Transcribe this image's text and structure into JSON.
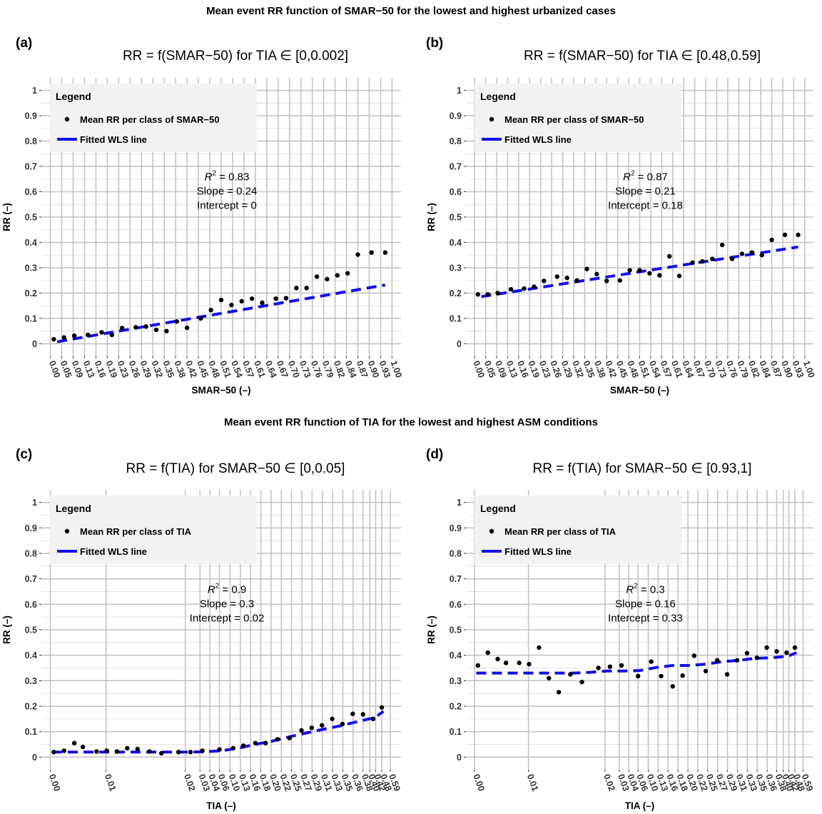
{
  "titles": {
    "top": "Mean event RR function of SMAR−50 for the lowest and highest urbanized cases",
    "bottom": "Mean event RR function of TIA for the lowest and highest ASM conditions"
  },
  "chart_data": [
    {
      "type": "scatter",
      "tag": "(a)",
      "title_main": "RR = f(SMAR−50) for TIA ∈ ",
      "title_interval": "0,0.002",
      "xlabel": "SMAR−50 (–)",
      "ylabel": "RR (–)",
      "ylim": [
        0,
        1
      ],
      "y_ticks": [
        "0",
        "0.1",
        "0.2",
        "0.3",
        "0.4",
        "0.5",
        "0.6",
        "0.7",
        "0.8",
        "0.9",
        "1"
      ],
      "x_ticks": [
        "0.00",
        "0.05",
        "0.09",
        "0.13",
        "0.16",
        "0.19",
        "0.23",
        "0.26",
        "0.29",
        "0.32",
        "0.35",
        "0.38",
        "0.42",
        "0.45",
        "0.48",
        "0.51",
        "0.54",
        "0.57",
        "0.61",
        "0.64",
        "0.67",
        "0.70",
        "0.73",
        "0.76",
        "0.79",
        "0.82",
        "0.84",
        "0.87",
        "0.90",
        "0.93",
        "1.00"
      ],
      "legend": {
        "title": "Legend",
        "points_label": "Mean RR per class of SMAR−50",
        "line_label": "Fitted WLS line"
      },
      "annotation": {
        "r2_label": "R",
        "r2_sup": "2",
        "r2_value": " = 0.83",
        "slope": "Slope = 0.24",
        "intercept": "Intercept = 0"
      },
      "points": {
        "x": [
          0.01,
          0.04,
          0.07,
          0.11,
          0.15,
          0.18,
          0.21,
          0.25,
          0.28,
          0.31,
          0.34,
          0.37,
          0.4,
          0.44,
          0.47,
          0.5,
          0.53,
          0.56,
          0.59,
          0.62,
          0.66,
          0.69,
          0.72,
          0.75,
          0.78,
          0.81,
          0.84,
          0.87,
          0.9,
          0.94,
          0.98
        ],
        "y": [
          0.018,
          0.025,
          0.032,
          0.035,
          0.045,
          0.035,
          0.062,
          0.065,
          0.068,
          0.055,
          0.05,
          0.088,
          0.063,
          0.1,
          0.133,
          0.173,
          0.153,
          0.168,
          0.178,
          0.162,
          0.178,
          0.18,
          0.22,
          0.22,
          0.265,
          0.255,
          0.27,
          0.278,
          0.352,
          0.36,
          0.36
        ]
      },
      "fit_line": {
        "x": [
          0.02,
          0.98
        ],
        "y": [
          0.008,
          0.232
        ]
      }
    },
    {
      "type": "scatter",
      "tag": "(b)",
      "title_main": "RR = f(SMAR−50) for TIA ∈ ",
      "title_interval": "0.48,0.59",
      "xlabel": "SMAR−50 (–)",
      "ylabel": "RR (–)",
      "ylim": [
        0,
        1
      ],
      "y_ticks": [
        "0",
        "0.1",
        "0.2",
        "0.3",
        "0.4",
        "0.5",
        "0.6",
        "0.7",
        "0.8",
        "0.9",
        "1"
      ],
      "x_ticks": [
        "0.00",
        "0.05",
        "0.09",
        "0.13",
        "0.16",
        "0.19",
        "0.23",
        "0.26",
        "0.29",
        "0.32",
        "0.35",
        "0.38",
        "0.42",
        "0.45",
        "0.48",
        "0.51",
        "0.54",
        "0.57",
        "0.61",
        "0.64",
        "0.67",
        "0.70",
        "0.73",
        "0.76",
        "0.79",
        "0.82",
        "0.84",
        "0.87",
        "0.90",
        "0.93",
        "1.00"
      ],
      "legend": {
        "title": "Legend",
        "points_label": "Mean RR per class of SMAR−50",
        "line_label": "Fitted WLS line"
      },
      "annotation": {
        "r2_label": "R",
        "r2_sup": "2",
        "r2_value": " = 0.87",
        "slope": "Slope = 0.21",
        "intercept": "Intercept = 0.18"
      },
      "points": {
        "x": [
          0.01,
          0.04,
          0.07,
          0.11,
          0.15,
          0.18,
          0.21,
          0.25,
          0.28,
          0.31,
          0.34,
          0.37,
          0.4,
          0.44,
          0.47,
          0.5,
          0.53,
          0.56,
          0.59,
          0.62,
          0.66,
          0.69,
          0.72,
          0.75,
          0.78,
          0.81,
          0.84,
          0.87,
          0.9,
          0.94,
          0.98
        ],
        "y": [
          0.195,
          0.195,
          0.2,
          0.215,
          0.218,
          0.225,
          0.248,
          0.265,
          0.26,
          0.25,
          0.295,
          0.275,
          0.248,
          0.25,
          0.29,
          0.29,
          0.278,
          0.27,
          0.345,
          0.268,
          0.32,
          0.325,
          0.335,
          0.39,
          0.335,
          0.355,
          0.36,
          0.35,
          0.41,
          0.43,
          0.43
        ]
      },
      "fit_line": {
        "x": [
          0.02,
          0.98
        ],
        "y": [
          0.186,
          0.382
        ]
      }
    },
    {
      "type": "scatter",
      "tag": "(c)",
      "title_main": "RR = f(TIA) for SMAR−50 ∈ ",
      "title_interval": "0,0.05",
      "xlabel": "TIA (–)",
      "ylabel": "RR (–)",
      "ylim": [
        0,
        1
      ],
      "y_ticks": [
        "0",
        "0.1",
        "0.2",
        "0.3",
        "0.4",
        "0.5",
        "0.6",
        "0.7",
        "0.8",
        "0.9",
        "1"
      ],
      "x_ticks": [
        "0.00",
        "0.01",
        "0.02",
        "0.03",
        "0.04",
        "0.06",
        "0.10",
        "0.13",
        "0.16",
        "0.18",
        "0.20",
        "0.22",
        "0.25",
        "0.27",
        "0.29",
        "0.31",
        "0.33",
        "0.35",
        "0.36",
        "0.38",
        "0.40",
        "0.42",
        "0.48",
        "0.59"
      ],
      "legend": {
        "title": "Legend",
        "points_label": "Mean RR per class of TIA",
        "line_label": "Fitted WLS line"
      },
      "annotation": {
        "r2_label": "R",
        "r2_sup": "2",
        "r2_value": " = 0.9",
        "slope": "Slope = 0.3",
        "intercept": "Intercept = 0.02"
      },
      "points": {
        "x": [
          0.01,
          0.04,
          0.07,
          0.095,
          0.135,
          0.165,
          0.195,
          0.225,
          0.255,
          0.29,
          0.325,
          0.375,
          0.41,
          0.445,
          0.495,
          0.535,
          0.565,
          0.6,
          0.63,
          0.665,
          0.7,
          0.735,
          0.765,
          0.795,
          0.825,
          0.855,
          0.885,
          0.915,
          0.945,
          0.97
        ],
        "y": [
          0.02,
          0.025,
          0.055,
          0.04,
          0.022,
          0.025,
          0.022,
          0.035,
          0.032,
          0.022,
          0.015,
          0.02,
          0.02,
          0.025,
          0.03,
          0.035,
          0.045,
          0.055,
          0.055,
          0.07,
          0.075,
          0.105,
          0.115,
          0.125,
          0.15,
          0.13,
          0.17,
          0.168,
          0.15,
          0.195
        ]
      },
      "fit_line": {
        "x": [
          0.005,
          0.05,
          0.1,
          0.15,
          0.2,
          0.25,
          0.3,
          0.35,
          0.4,
          0.45,
          0.5,
          0.55,
          0.6,
          0.65,
          0.7,
          0.75,
          0.8,
          0.85,
          0.9,
          0.95,
          0.975
        ],
        "y": [
          0.02,
          0.02,
          0.02,
          0.02,
          0.02,
          0.02,
          0.02,
          0.02,
          0.02,
          0.021,
          0.025,
          0.035,
          0.05,
          0.063,
          0.08,
          0.095,
          0.11,
          0.123,
          0.14,
          0.155,
          0.18
        ]
      }
    },
    {
      "type": "scatter",
      "tag": "(d)",
      "title_main": "RR = f(TIA) for SMAR−50 ∈ ",
      "title_interval": "0.93,1",
      "xlabel": "TIA (–)",
      "ylabel": "RR (–)",
      "ylim": [
        0,
        1
      ],
      "y_ticks": [
        "0",
        "0.1",
        "0.2",
        "0.3",
        "0.4",
        "0.5",
        "0.6",
        "0.7",
        "0.8",
        "0.9",
        "1"
      ],
      "x_ticks": [
        "0.00",
        "0.01",
        "0.02",
        "0.03",
        "0.04",
        "0.06",
        "0.10",
        "0.13",
        "0.16",
        "0.18",
        "0.20",
        "0.22",
        "0.25",
        "0.27",
        "0.29",
        "0.31",
        "0.33",
        "0.35",
        "0.36",
        "0.38",
        "0.40",
        "0.42",
        "0.48",
        "0.59"
      ],
      "legend": {
        "title": "Legend",
        "points_label": "Mean RR per class of TIA",
        "line_label": "Fitted WLS line"
      },
      "annotation": {
        "r2_label": "R",
        "r2_sup": "2",
        "r2_value": " = 0.3",
        "slope": "Slope = 0.16",
        "intercept": "Intercept = 0.33"
      },
      "points": {
        "x": [
          0.01,
          0.04,
          0.07,
          0.095,
          0.135,
          0.165,
          0.195,
          0.225,
          0.255,
          0.29,
          0.325,
          0.375,
          0.41,
          0.445,
          0.495,
          0.535,
          0.565,
          0.6,
          0.63,
          0.665,
          0.7,
          0.735,
          0.765,
          0.795,
          0.825,
          0.855,
          0.885,
          0.915,
          0.945,
          0.97
        ],
        "y": [
          0.36,
          0.41,
          0.385,
          0.37,
          0.37,
          0.365,
          0.43,
          0.31,
          0.255,
          0.325,
          0.295,
          0.35,
          0.355,
          0.36,
          0.318,
          0.375,
          0.318,
          0.278,
          0.32,
          0.398,
          0.338,
          0.38,
          0.325,
          0.38,
          0.408,
          0.39,
          0.43,
          0.415,
          0.41,
          0.43
        ]
      },
      "fit_line": {
        "x": [
          0.005,
          0.05,
          0.1,
          0.15,
          0.2,
          0.25,
          0.3,
          0.35,
          0.4,
          0.45,
          0.5,
          0.55,
          0.6,
          0.65,
          0.7,
          0.75,
          0.8,
          0.85,
          0.9,
          0.95,
          0.975
        ],
        "y": [
          0.33,
          0.33,
          0.33,
          0.33,
          0.33,
          0.33,
          0.33,
          0.333,
          0.338,
          0.338,
          0.34,
          0.352,
          0.36,
          0.36,
          0.365,
          0.375,
          0.38,
          0.388,
          0.39,
          0.397,
          0.41
        ]
      }
    }
  ]
}
